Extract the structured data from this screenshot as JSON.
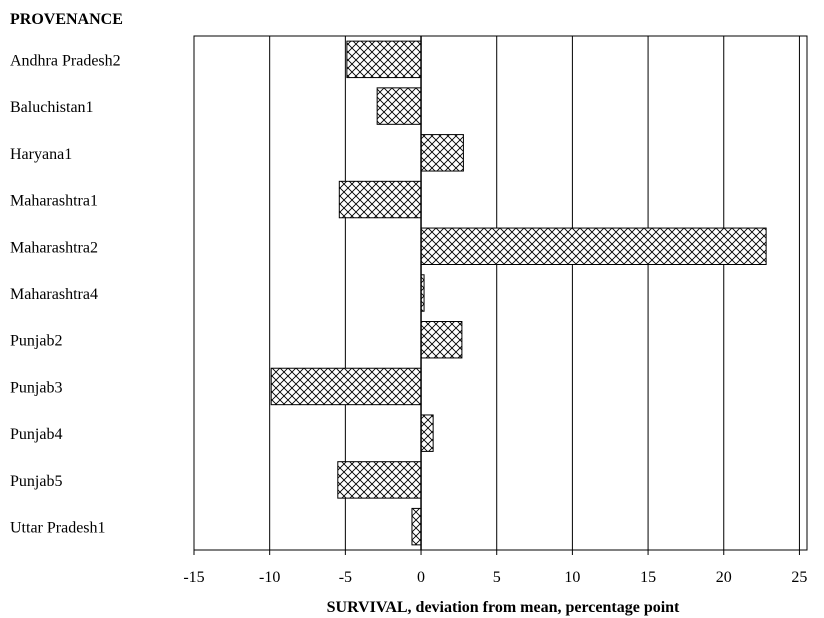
{
  "chart_data": {
    "type": "bar",
    "orientation": "horizontal",
    "category_axis_title": "PROVENANCE",
    "xlabel": "SURVIVAL, deviation from mean, percentage point",
    "categories": [
      "Andhra Pradesh2",
      "Baluchistan1",
      "Haryana1",
      "Maharashtra1",
      "Maharashtra2",
      "Maharashtra4",
      "Punjab2",
      "Punjab3",
      "Punjab4",
      "Punjab5",
      "Uttar Pradesh1"
    ],
    "values": [
      -4.9,
      -2.9,
      2.8,
      -5.4,
      22.8,
      0.2,
      2.7,
      -9.9,
      0.8,
      -5.5,
      -0.6
    ],
    "xlim": [
      -15,
      25.5
    ],
    "xticks": [
      "-15",
      "-10",
      "-5",
      "0",
      "5",
      "10",
      "15",
      "20",
      "25"
    ],
    "grid": "vertical",
    "bar_fill": "crosshatch",
    "legend": "none"
  }
}
